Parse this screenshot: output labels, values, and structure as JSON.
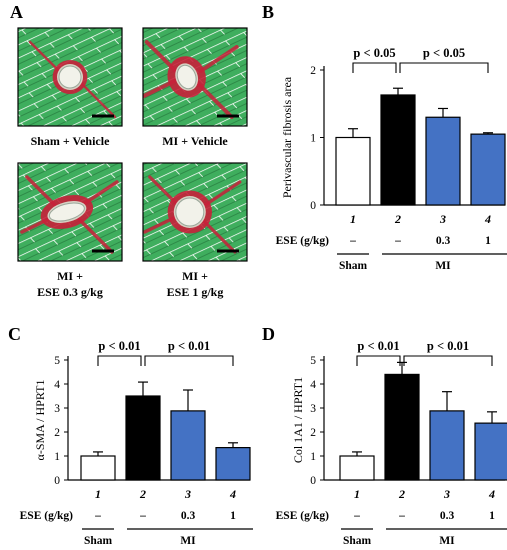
{
  "panel_a": {
    "letter": "A",
    "images": [
      {
        "caption": [
          "Sham + Vehicle"
        ]
      },
      {
        "caption": [
          "MI + Vehicle"
        ]
      },
      {
        "caption": [
          "MI +",
          "ESE 0.3 g/kg"
        ]
      },
      {
        "caption": [
          "MI +",
          "ESE 1 g/kg"
        ]
      }
    ],
    "colors": {
      "muscle": "#3fae5e",
      "muscle_dark": "#2e8a48",
      "fibrosis": "#c8203a",
      "lumen": "#f2f2ea",
      "frame": "#000000"
    }
  },
  "treatment_row": {
    "label": "ESE (g/kg)",
    "doses": [
      "–",
      "–",
      "0.3",
      "1"
    ],
    "group_labels": {
      "sham": "Sham",
      "mi": "MI"
    },
    "bar_numbers": [
      "1",
      "2",
      "3",
      "4"
    ]
  },
  "colors": {
    "sham": "#ffffff",
    "mi_vehicle": "#000000",
    "ese": "#4472c4",
    "outline": "#000000"
  },
  "chart_data": [
    {
      "panel": "B",
      "type": "bar",
      "categories": [
        "1",
        "2",
        "3",
        "4"
      ],
      "values": [
        1.0,
        1.63,
        1.3,
        1.05
      ],
      "errors": [
        0.13,
        0.1,
        0.13,
        0.02
      ],
      "ylabel": "Perivascular fibrosis area",
      "ylim": [
        0,
        2
      ],
      "yticks": [
        "0",
        "1",
        "2"
      ],
      "comparisons": [
        {
          "from": 0,
          "to": 1,
          "label": "p < 0.05"
        },
        {
          "from": 1,
          "to": 3,
          "label": "p < 0.05"
        }
      ]
    },
    {
      "panel": "C",
      "type": "bar",
      "categories": [
        "1",
        "2",
        "3",
        "4"
      ],
      "values": [
        1.0,
        3.5,
        2.88,
        1.35
      ],
      "errors": [
        0.17,
        0.58,
        0.87,
        0.2
      ],
      "ylabel": "α-SMA / HPRT1",
      "ylim": [
        0,
        5
      ],
      "yticks": [
        "0",
        "1",
        "2",
        "3",
        "4",
        "5"
      ],
      "comparisons": [
        {
          "from": 0,
          "to": 1,
          "label": "p < 0.01"
        },
        {
          "from": 1,
          "to": 3,
          "label": "p < 0.01"
        }
      ]
    },
    {
      "panel": "D",
      "type": "bar",
      "categories": [
        "1",
        "2",
        "3",
        "4"
      ],
      "values": [
        1.0,
        4.4,
        2.88,
        2.37
      ],
      "errors": [
        0.17,
        0.5,
        0.8,
        0.47
      ],
      "ylabel": "Col 1A1 / HPRT1",
      "ylim": [
        0,
        5
      ],
      "yticks": [
        "0",
        "1",
        "2",
        "3",
        "4",
        "5"
      ],
      "comparisons": [
        {
          "from": 0,
          "to": 1,
          "label": "p < 0.01"
        },
        {
          "from": 1,
          "to": 3,
          "label": "p < 0.01"
        }
      ]
    }
  ]
}
